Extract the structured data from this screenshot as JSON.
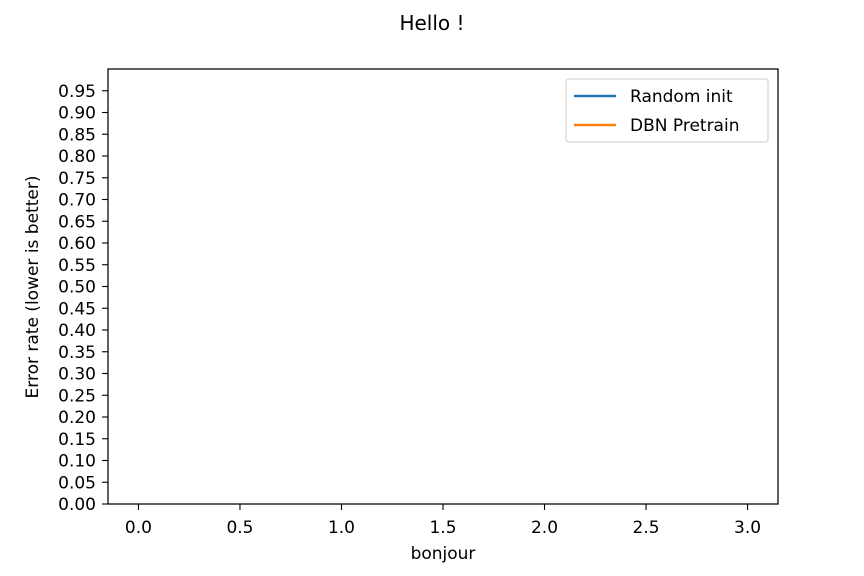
{
  "chart_data": {
    "type": "line",
    "title": "Hello !",
    "xlabel": "bonjour",
    "ylabel": "Error rate (lower is better)",
    "xlim": [
      -0.15,
      3.15
    ],
    "ylim": [
      0.0,
      1.0
    ],
    "x_ticks": [
      "0.0",
      "0.5",
      "1.0",
      "1.5",
      "2.0",
      "2.5",
      "3.0"
    ],
    "y_ticks": [
      "0.00",
      "0.05",
      "0.10",
      "0.15",
      "0.20",
      "0.25",
      "0.30",
      "0.35",
      "0.40",
      "0.45",
      "0.50",
      "0.55",
      "0.60",
      "0.65",
      "0.70",
      "0.75",
      "0.80",
      "0.85",
      "0.90",
      "0.95"
    ],
    "grid": false,
    "legend_position": "top-right",
    "series": [
      {
        "name": "Random init",
        "color": "#1f77b4",
        "x": [],
        "y": []
      },
      {
        "name": "DBN Pretrain",
        "color": "#ff7f0e",
        "x": [],
        "y": []
      }
    ]
  }
}
